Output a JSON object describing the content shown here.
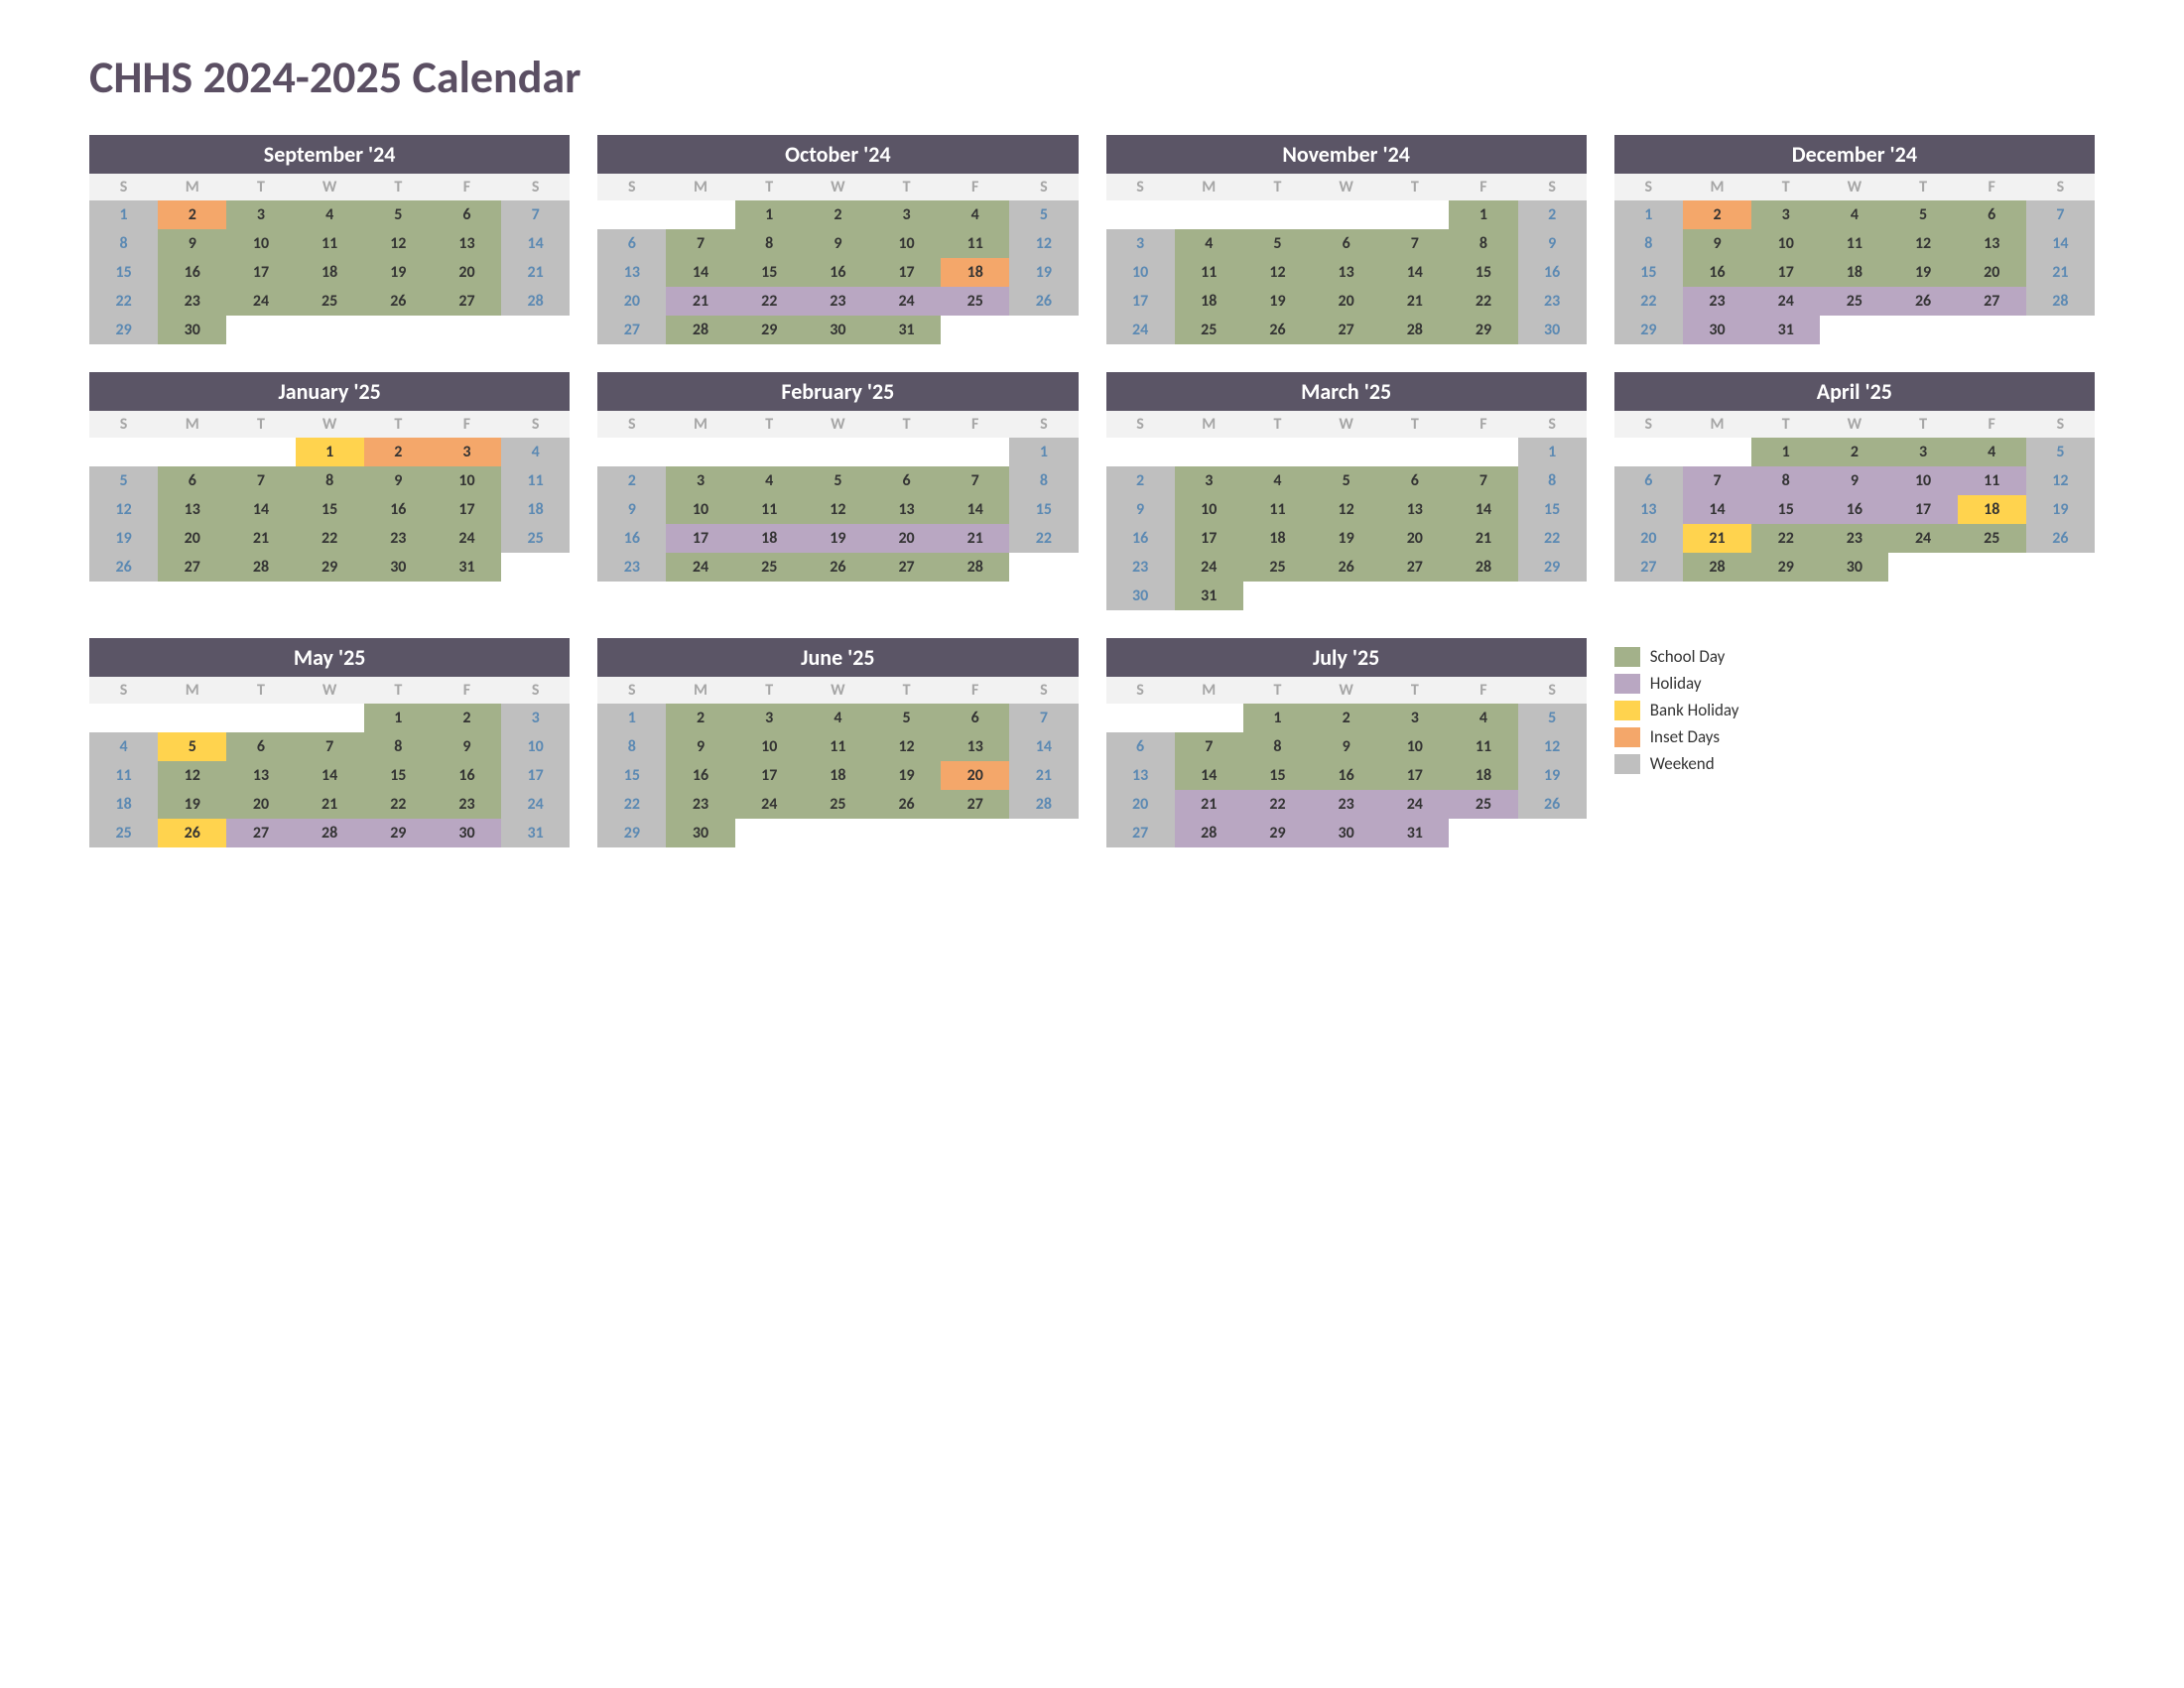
{
  "title": "CHHS 2024-2025 Calendar",
  "colors": {
    "title": "#5b4f63",
    "monthHeaderBg": "#5b5566",
    "monthHeaderText": "#ffffff",
    "dowBg": "#f2f2f2",
    "dowText": "#a6a6a6",
    "schoolDay": "#a3b18a",
    "holiday": "#b9a7c2",
    "bankHoliday": "#ffd34e",
    "insetDay": "#f4a76a",
    "weekend": "#bfbfbf",
    "weekendText": "#5b89b3",
    "weekdayText": "#333333"
  },
  "dayInitials": [
    "S",
    "M",
    "T",
    "W",
    "T",
    "F",
    "S"
  ],
  "legend": [
    {
      "label": "School Day",
      "colorKey": "schoolDay"
    },
    {
      "label": "Holiday",
      "colorKey": "holiday"
    },
    {
      "label": "Bank Holiday",
      "colorKey": "bankHoliday"
    },
    {
      "label": "Inset Days",
      "colorKey": "insetDay"
    },
    {
      "label": "Weekend",
      "colorKey": "weekend"
    }
  ],
  "months": [
    {
      "name": "September '24",
      "startDow": 0,
      "numDays": 30,
      "types": [
        "w",
        "i",
        "s",
        "s",
        "s",
        "s",
        "w",
        "w",
        "s",
        "s",
        "s",
        "s",
        "s",
        "w",
        "w",
        "s",
        "s",
        "s",
        "s",
        "s",
        "w",
        "w",
        "s",
        "s",
        "s",
        "s",
        "s",
        "w",
        "w",
        "s"
      ]
    },
    {
      "name": "October '24",
      "startDow": 2,
      "numDays": 31,
      "types": [
        "s",
        "s",
        "s",
        "s",
        "w",
        "w",
        "s",
        "s",
        "s",
        "s",
        "s",
        "w",
        "w",
        "s",
        "s",
        "s",
        "s",
        "i",
        "w",
        "w",
        "h",
        "h",
        "h",
        "h",
        "h",
        "w",
        "w",
        "s",
        "s",
        "s",
        "s"
      ]
    },
    {
      "name": "November '24",
      "startDow": 5,
      "numDays": 30,
      "types": [
        "s",
        "w",
        "w",
        "s",
        "s",
        "s",
        "s",
        "s",
        "w",
        "w",
        "s",
        "s",
        "s",
        "s",
        "s",
        "w",
        "w",
        "s",
        "s",
        "s",
        "s",
        "s",
        "w",
        "w",
        "s",
        "s",
        "s",
        "s",
        "s",
        "w"
      ]
    },
    {
      "name": "December '24",
      "startDow": 0,
      "numDays": 31,
      "types": [
        "w",
        "i",
        "s",
        "s",
        "s",
        "s",
        "w",
        "w",
        "s",
        "s",
        "s",
        "s",
        "s",
        "w",
        "w",
        "s",
        "s",
        "s",
        "s",
        "s",
        "w",
        "w",
        "h",
        "h",
        "h",
        "h",
        "h",
        "w",
        "w",
        "h",
        "h"
      ]
    },
    {
      "name": "January '25",
      "startDow": 3,
      "numDays": 31,
      "types": [
        "b",
        "i",
        "i",
        "w",
        "w",
        "s",
        "s",
        "s",
        "s",
        "s",
        "w",
        "w",
        "s",
        "s",
        "s",
        "s",
        "s",
        "w",
        "w",
        "s",
        "s",
        "s",
        "s",
        "s",
        "w",
        "w",
        "s",
        "s",
        "s",
        "s",
        "s"
      ]
    },
    {
      "name": "February '25",
      "startDow": 6,
      "numDays": 28,
      "types": [
        "w",
        "w",
        "s",
        "s",
        "s",
        "s",
        "s",
        "w",
        "w",
        "s",
        "s",
        "s",
        "s",
        "s",
        "w",
        "w",
        "h",
        "h",
        "h",
        "h",
        "h",
        "w",
        "w",
        "s",
        "s",
        "s",
        "s",
        "s"
      ]
    },
    {
      "name": "March '25",
      "startDow": 6,
      "numDays": 31,
      "types": [
        "w",
        "w",
        "s",
        "s",
        "s",
        "s",
        "s",
        "w",
        "w",
        "s",
        "s",
        "s",
        "s",
        "s",
        "w",
        "w",
        "s",
        "s",
        "s",
        "s",
        "s",
        "w",
        "w",
        "s",
        "s",
        "s",
        "s",
        "s",
        "w",
        "w",
        "s"
      ]
    },
    {
      "name": "April '25",
      "startDow": 2,
      "numDays": 30,
      "types": [
        "s",
        "s",
        "s",
        "s",
        "w",
        "w",
        "h",
        "h",
        "h",
        "h",
        "h",
        "w",
        "w",
        "h",
        "h",
        "h",
        "h",
        "b",
        "w",
        "w",
        "b",
        "s",
        "s",
        "s",
        "s",
        "w",
        "w",
        "s",
        "s",
        "s"
      ]
    },
    {
      "name": "May '25",
      "startDow": 4,
      "numDays": 31,
      "types": [
        "s",
        "s",
        "w",
        "w",
        "b",
        "s",
        "s",
        "s",
        "s",
        "w",
        "w",
        "s",
        "s",
        "s",
        "s",
        "s",
        "w",
        "w",
        "s",
        "s",
        "s",
        "s",
        "s",
        "w",
        "w",
        "b",
        "h",
        "h",
        "h",
        "h",
        "w"
      ]
    },
    {
      "name": "June '25",
      "startDow": 0,
      "numDays": 30,
      "types": [
        "w",
        "s",
        "s",
        "s",
        "s",
        "s",
        "w",
        "w",
        "s",
        "s",
        "s",
        "s",
        "s",
        "w",
        "w",
        "s",
        "s",
        "s",
        "s",
        "i",
        "w",
        "w",
        "s",
        "s",
        "s",
        "s",
        "s",
        "w",
        "w",
        "s"
      ]
    },
    {
      "name": "July '25",
      "startDow": 2,
      "numDays": 31,
      "types": [
        "s",
        "s",
        "s",
        "s",
        "w",
        "w",
        "s",
        "s",
        "s",
        "s",
        "s",
        "w",
        "w",
        "s",
        "s",
        "s",
        "s",
        "s",
        "w",
        "w",
        "h",
        "h",
        "h",
        "h",
        "h",
        "w",
        "w",
        "h",
        "h",
        "h",
        "h"
      ]
    }
  ]
}
